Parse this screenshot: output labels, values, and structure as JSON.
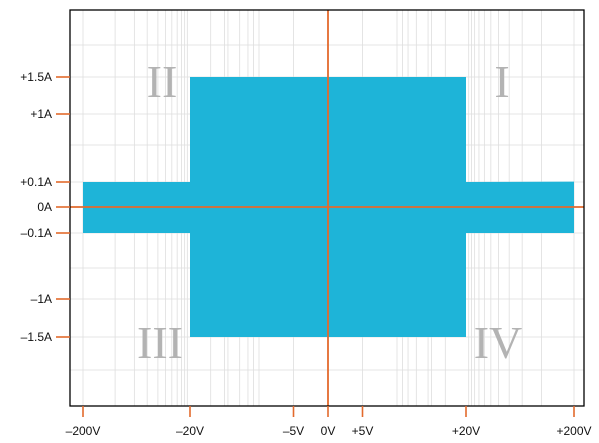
{
  "chart_data": {
    "type": "area",
    "title": "",
    "xlabel": "",
    "ylabel": "",
    "x_tick_labels": [
      {
        "label": "–200V",
        "value": -200
      },
      {
        "label": "–20V",
        "value": -20
      },
      {
        "label": "–5V",
        "value": -5
      },
      {
        "label": "0V",
        "value": 0
      },
      {
        "label": "+5V",
        "value": 5
      },
      {
        "label": "+20V",
        "value": 20
      },
      {
        "label": "+200V",
        "value": 200
      }
    ],
    "y_tick_labels": [
      {
        "label": "+1.5A",
        "value": 1.5
      },
      {
        "label": "+1A",
        "value": 1
      },
      {
        "label": "+0.1A",
        "value": 0.1
      },
      {
        "label": "0A",
        "value": 0
      },
      {
        "label": "–0.1A",
        "value": -0.1
      },
      {
        "label": "–1A",
        "value": -1
      },
      {
        "label": "–1.5A",
        "value": -1.5
      }
    ],
    "quadrant_labels": [
      {
        "label": "I",
        "x": 150,
        "y": 1.5
      },
      {
        "label": "II",
        "x": -150,
        "y": 1.5
      },
      {
        "label": "III",
        "x": -150,
        "y": -1.5
      },
      {
        "label": "IV",
        "x": 150,
        "y": -1.5
      }
    ],
    "operating_region": [
      {
        "x": -200,
        "y": 0.1
      },
      {
        "x": -20,
        "y": 0.1
      },
      {
        "x": -20,
        "y": 1.5
      },
      {
        "x": 20,
        "y": 1.5
      },
      {
        "x": 20,
        "y": 0.1
      },
      {
        "x": 200,
        "y": 0.105
      },
      {
        "x": 200,
        "y": -0.1
      },
      {
        "x": 20,
        "y": -0.1
      },
      {
        "x": 20,
        "y": -1.5
      },
      {
        "x": -20,
        "y": -1.5
      },
      {
        "x": -20,
        "y": -0.1
      },
      {
        "x": -200,
        "y": -0.1
      }
    ],
    "xlim": [
      -210,
      210
    ],
    "ylim": [
      -2.2,
      2.4
    ],
    "grid": true,
    "colors": {
      "region": "#1eb4d8",
      "axes": "#e36a2c",
      "grid": "#dedede",
      "frame": "#000000",
      "quadrant_text": "#b3b3b3"
    }
  }
}
